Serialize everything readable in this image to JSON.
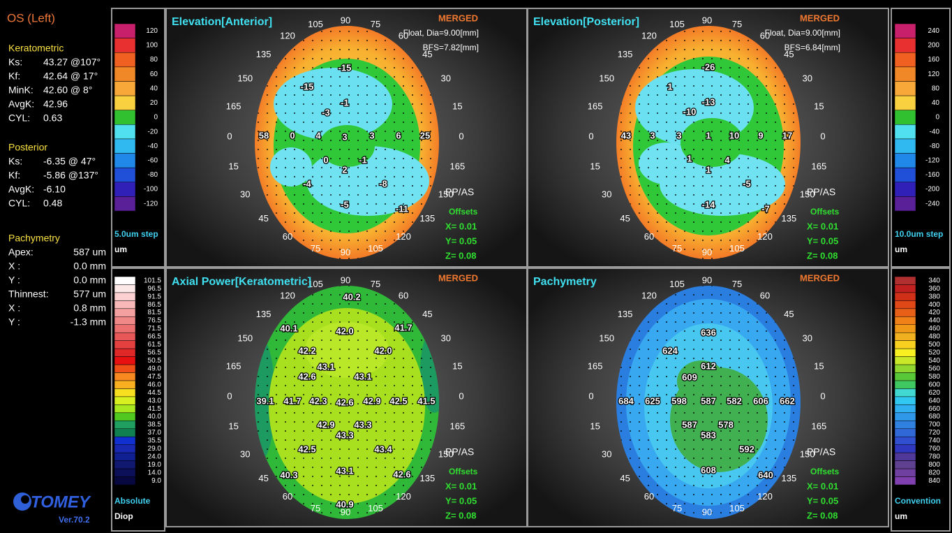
{
  "sidebar": {
    "eye": "OS (Left)",
    "keratometric": {
      "heading": "Keratometric",
      "rows": [
        [
          "Ks:",
          "43.27 @107°"
        ],
        [
          "Kf:",
          "42.64 @ 17°"
        ],
        [
          "MinK:",
          "42.60 @  8°"
        ],
        [
          "AvgK:",
          "42.96"
        ],
        [
          "CYL:",
          "0.63"
        ]
      ]
    },
    "posterior": {
      "heading": "Posterior",
      "rows": [
        [
          "Ks:",
          "-6.35 @ 47°"
        ],
        [
          "Kf:",
          "-5.86 @137°"
        ],
        [
          "AvgK:",
          "-6.10"
        ],
        [
          "CYL:",
          "0.48"
        ]
      ]
    },
    "pachymetry": {
      "heading": "Pachymetry",
      "rows": [
        [
          "Apex:",
          "587 um"
        ],
        [
          "X :",
          "0.0 mm"
        ],
        [
          "Y :",
          "0.0 mm"
        ],
        [
          "Thinnest:",
          "577 um"
        ],
        [
          "X :",
          "0.8 mm"
        ],
        [
          "Y :",
          "-1.3 mm"
        ]
      ]
    },
    "logo": "TOMEY",
    "version": "Ver.70.2"
  },
  "scales": [
    {
      "labels": [
        "120",
        "100",
        "80",
        "60",
        "40",
        "20",
        "0",
        "-20",
        "-40",
        "-60",
        "-80",
        "-100",
        "-120"
      ],
      "colors": [
        "#c8206a",
        "#e83030",
        "#f06020",
        "#f08828",
        "#f8a838",
        "#f8d040",
        "#30c030",
        "#50e0f0",
        "#30b8f0",
        "#2088e8",
        "#2050d8",
        "#3020b8",
        "#5a2098"
      ],
      "footer": [
        "5.0um step",
        "um"
      ]
    },
    {
      "labels": [
        "101.5",
        "96.5",
        "91.5",
        "86.5",
        "81.5",
        "76.5",
        "71.5",
        "66.5",
        "61.5",
        "56.5",
        "50.5",
        "49.0",
        "47.5",
        "46.0",
        "44.5",
        "43.0",
        "41.5",
        "40.0",
        "38.5",
        "37.0",
        "35.5",
        "29.0",
        "24.0",
        "19.0",
        "14.0",
        "9.0"
      ],
      "colors": [
        "#ffffff",
        "#fde8e8",
        "#fcd0d0",
        "#f8b8b8",
        "#f4a0a0",
        "#f08888",
        "#ec7070",
        "#e85858",
        "#e44040",
        "#e02828",
        "#e81010",
        "#f05018",
        "#f88820",
        "#f8b020",
        "#f8e020",
        "#d8f020",
        "#a8e820",
        "#50c820",
        "#20a060",
        "#108050",
        "#1030d0",
        "#1828b0",
        "#102090",
        "#101870",
        "#0c1058",
        "#080840"
      ],
      "footer": [
        "Absolute",
        "Diop"
      ]
    },
    {
      "labels": [
        "240",
        "200",
        "160",
        "120",
        "80",
        "40",
        "0",
        "-40",
        "-80",
        "-120",
        "-160",
        "-200",
        "-240"
      ],
      "colors": [
        "#c8206a",
        "#e83030",
        "#f06020",
        "#f08828",
        "#f8a838",
        "#f8d040",
        "#30c030",
        "#50e0f0",
        "#30b8f0",
        "#2088e8",
        "#2050d8",
        "#3020b8",
        "#5a2098"
      ],
      "footer": [
        "10.0um step",
        "um"
      ]
    },
    {
      "labels": [
        "340",
        "360",
        "380",
        "400",
        "420",
        "440",
        "460",
        "480",
        "500",
        "520",
        "540",
        "560",
        "580",
        "600",
        "620",
        "640",
        "660",
        "680",
        "700",
        "720",
        "740",
        "760",
        "780",
        "800",
        "820",
        "840"
      ],
      "colors": [
        "#b03030",
        "#c02020",
        "#d03018",
        "#e04818",
        "#e86018",
        "#f08018",
        "#f09818",
        "#f0b020",
        "#f8d020",
        "#f8f020",
        "#c8e828",
        "#90d830",
        "#58c838",
        "#40c860",
        "#40d8d0",
        "#30c8f0",
        "#30b0f0",
        "#3098e8",
        "#3080e0",
        "#3068d8",
        "#3050d0",
        "#3038c0",
        "#503898",
        "#604090",
        "#7040a0",
        "#8040b0"
      ],
      "footer": [
        "Convention",
        "um"
      ]
    }
  ],
  "angle_labels": [
    "90",
    "75",
    "60",
    "45",
    "30",
    "15",
    "0",
    "165",
    "150",
    "135",
    "120",
    "105",
    "90",
    "75",
    "60",
    "45",
    "30",
    "15",
    "0",
    "165",
    "150",
    "135",
    "120",
    "105"
  ],
  "maps": [
    {
      "title": "Elevation[Anterior]",
      "status": "MERGED",
      "info": [
        "Float, Dia=9.00[mm]",
        "BFS=7.82[mm]"
      ],
      "mode": "PP/AS",
      "offsets_title": "Offsets",
      "offsets": [
        "X= 0.01",
        "Y= 0.05",
        "Z= 0.08"
      ],
      "labels": [
        "-15",
        "-15",
        "-1",
        "-3",
        "58",
        "0",
        "4",
        "3",
        "3",
        "6",
        "25",
        "0",
        "-1",
        "2",
        "-4",
        "-8",
        "-5",
        "-11"
      ]
    },
    {
      "title": "Elevation[Posterior]",
      "status": "MERGED",
      "info": [
        "Float, Dia=9.00[mm]",
        "BFS=6.84[mm]"
      ],
      "mode": "PP/AS",
      "offsets_title": "Offsets",
      "offsets": [
        "X= 0.01",
        "Y= 0.05",
        "Z= 0.08"
      ],
      "labels": [
        "-26",
        "1",
        "-13",
        "-10",
        "43",
        "3",
        "3",
        "1",
        "10",
        "9",
        "17",
        "1",
        "4",
        "1",
        "-5",
        "-14",
        "-7"
      ]
    },
    {
      "title": "Axial Power[Keratometric]",
      "status": "MERGED",
      "mode": "PP/AS",
      "offsets_title": "Offsets",
      "offsets": [
        "X= 0.01",
        "Y= 0.05",
        "Z= 0.08"
      ],
      "labels": [
        "40.2",
        "40.1",
        "42.0",
        "41.7",
        "42.2",
        "42.0",
        "43.1",
        "42.6",
        "43.1",
        "39.1",
        "41.7",
        "42.3",
        "42.6",
        "42.9",
        "42.5",
        "41.5",
        "42.9",
        "43.3",
        "43.3",
        "42.5",
        "43.4",
        "43.1",
        "40.3",
        "42.6",
        "40.9"
      ]
    },
    {
      "title": "Pachymetry",
      "status": "MERGED",
      "mode": "PP/AS",
      "offsets_title": "Offsets",
      "offsets": [
        "X= 0.01",
        "Y= 0.05",
        "Z= 0.08"
      ],
      "labels": [
        "636",
        "624",
        "612",
        "609",
        "684",
        "625",
        "598",
        "587",
        "582",
        "606",
        "662",
        "587",
        "578",
        "583",
        "592",
        "608",
        "640"
      ]
    }
  ]
}
